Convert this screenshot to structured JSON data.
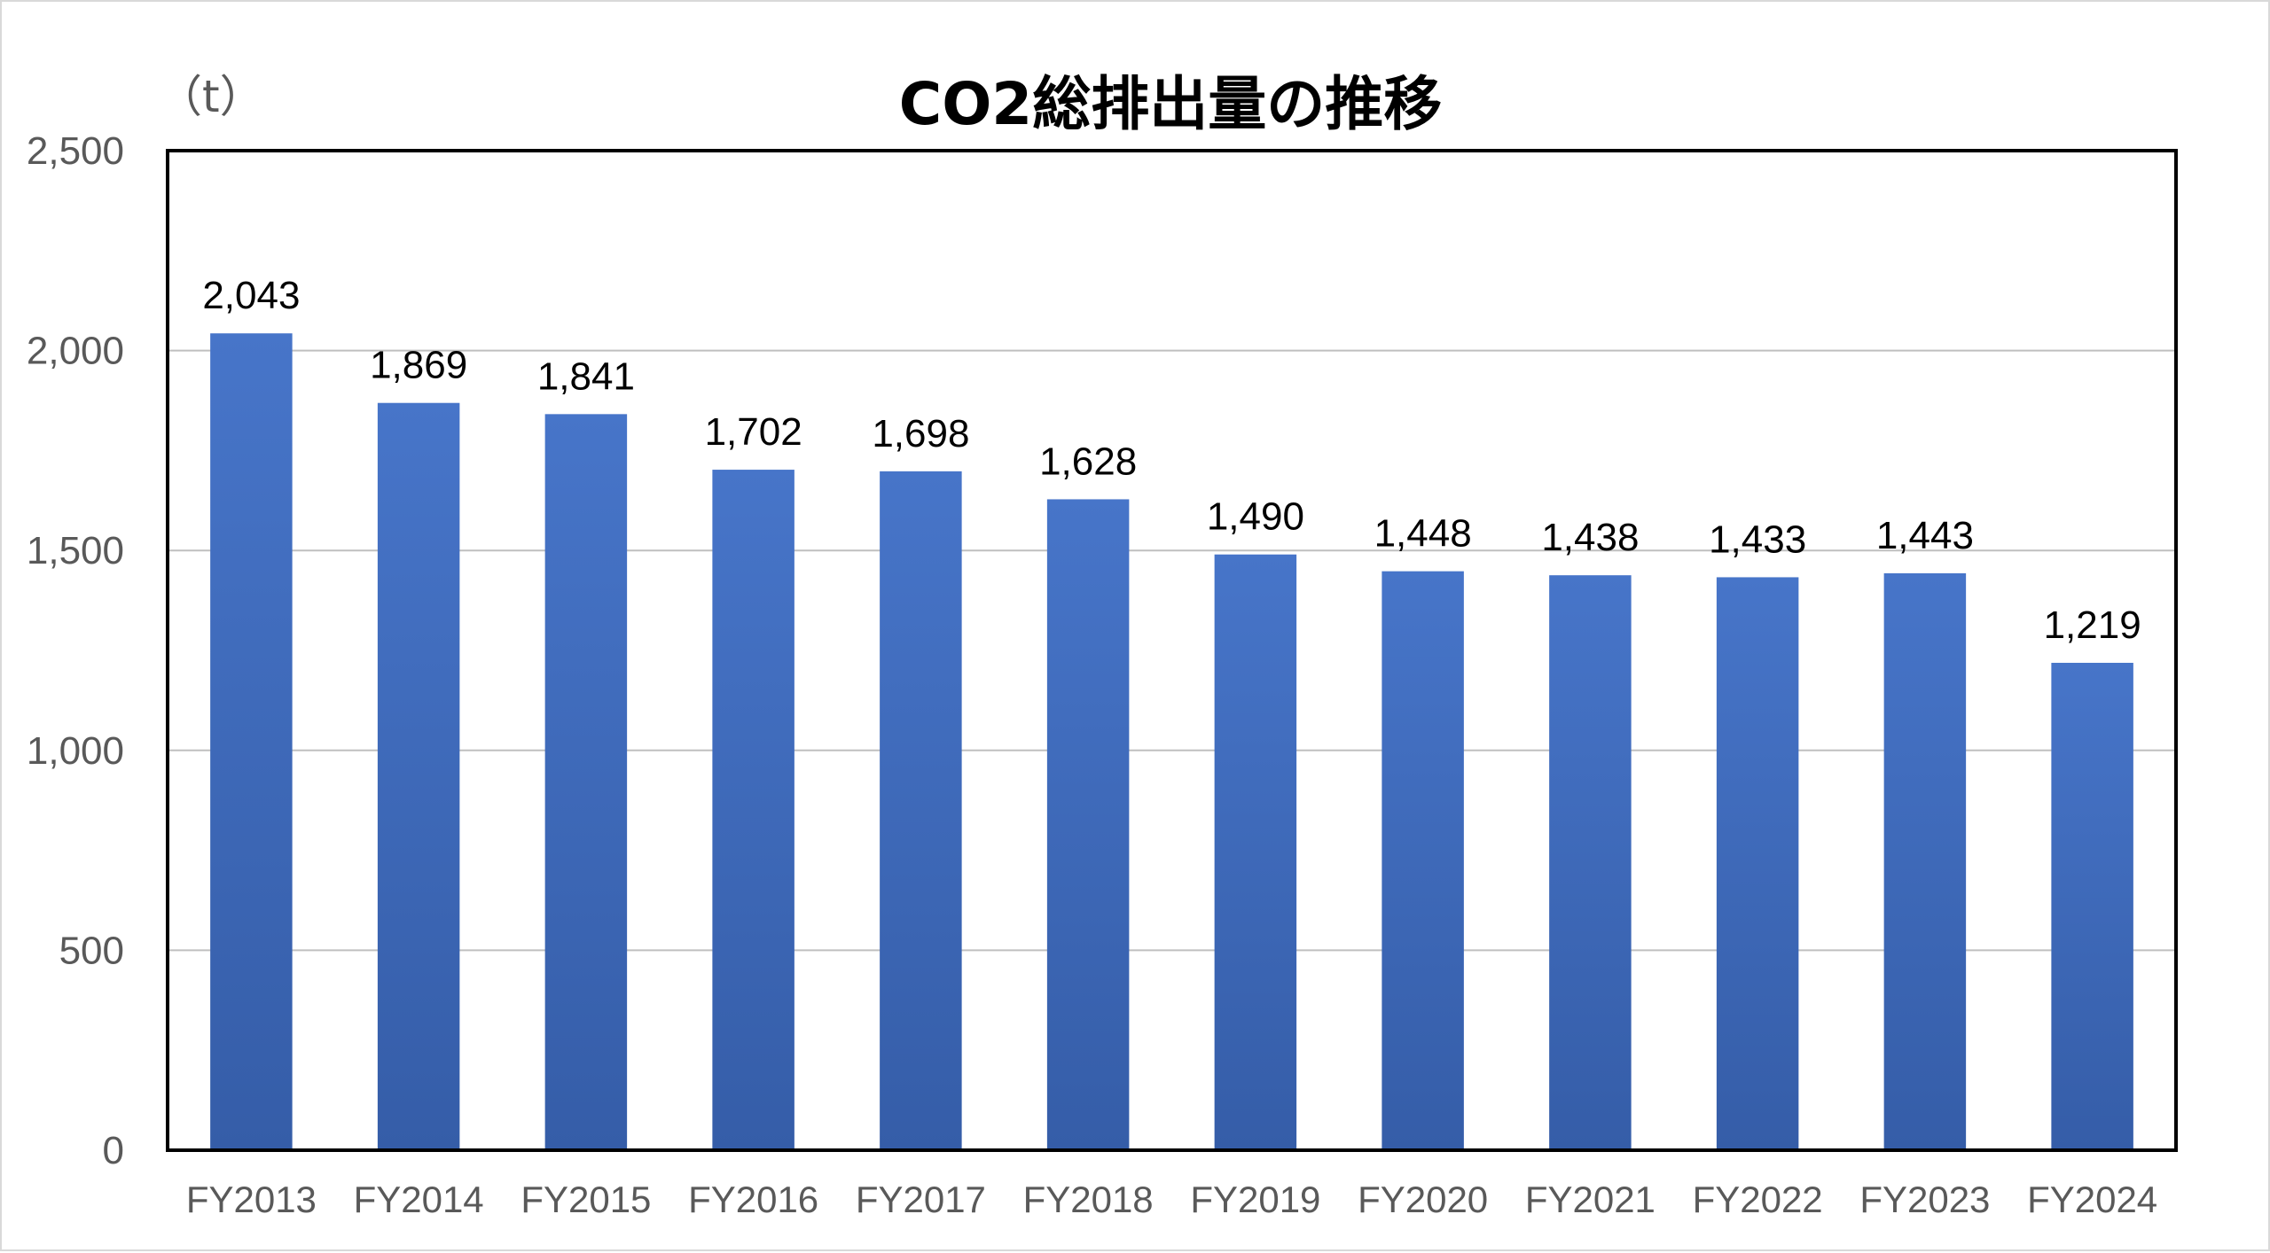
{
  "chart_data": {
    "type": "bar",
    "title": "CO2総排出量の推移",
    "unit_label": "（t）",
    "categories": [
      "FY2013",
      "FY2014",
      "FY2015",
      "FY2016",
      "FY2017",
      "FY2018",
      "FY2019",
      "FY2020",
      "FY2021",
      "FY2022",
      "FY2023",
      "FY2024"
    ],
    "values": [
      2043,
      1869,
      1841,
      1702,
      1698,
      1628,
      1490,
      1448,
      1438,
      1433,
      1443,
      1219
    ],
    "value_labels": [
      "2,043",
      "1,869",
      "1,841",
      "1,702",
      "1,698",
      "1,628",
      "1,490",
      "1,448",
      "1,438",
      "1,433",
      "1,443",
      "1,219"
    ],
    "y_ticks": [
      0,
      500,
      1000,
      1500,
      2000,
      2500
    ],
    "y_tick_labels": [
      "0",
      "500",
      "1,000",
      "1,500",
      "2,000",
      "2,500"
    ],
    "ylim": [
      0,
      2500
    ],
    "xlabel": "",
    "ylabel": "",
    "grid": true,
    "legend": "none",
    "colors": {
      "bar_top": "#4775C9",
      "bar_bottom": "#355DA8",
      "gridline": "#bfbfbf",
      "axis": "#000000",
      "tick_label": "#595959",
      "value_label": "#000000"
    }
  }
}
